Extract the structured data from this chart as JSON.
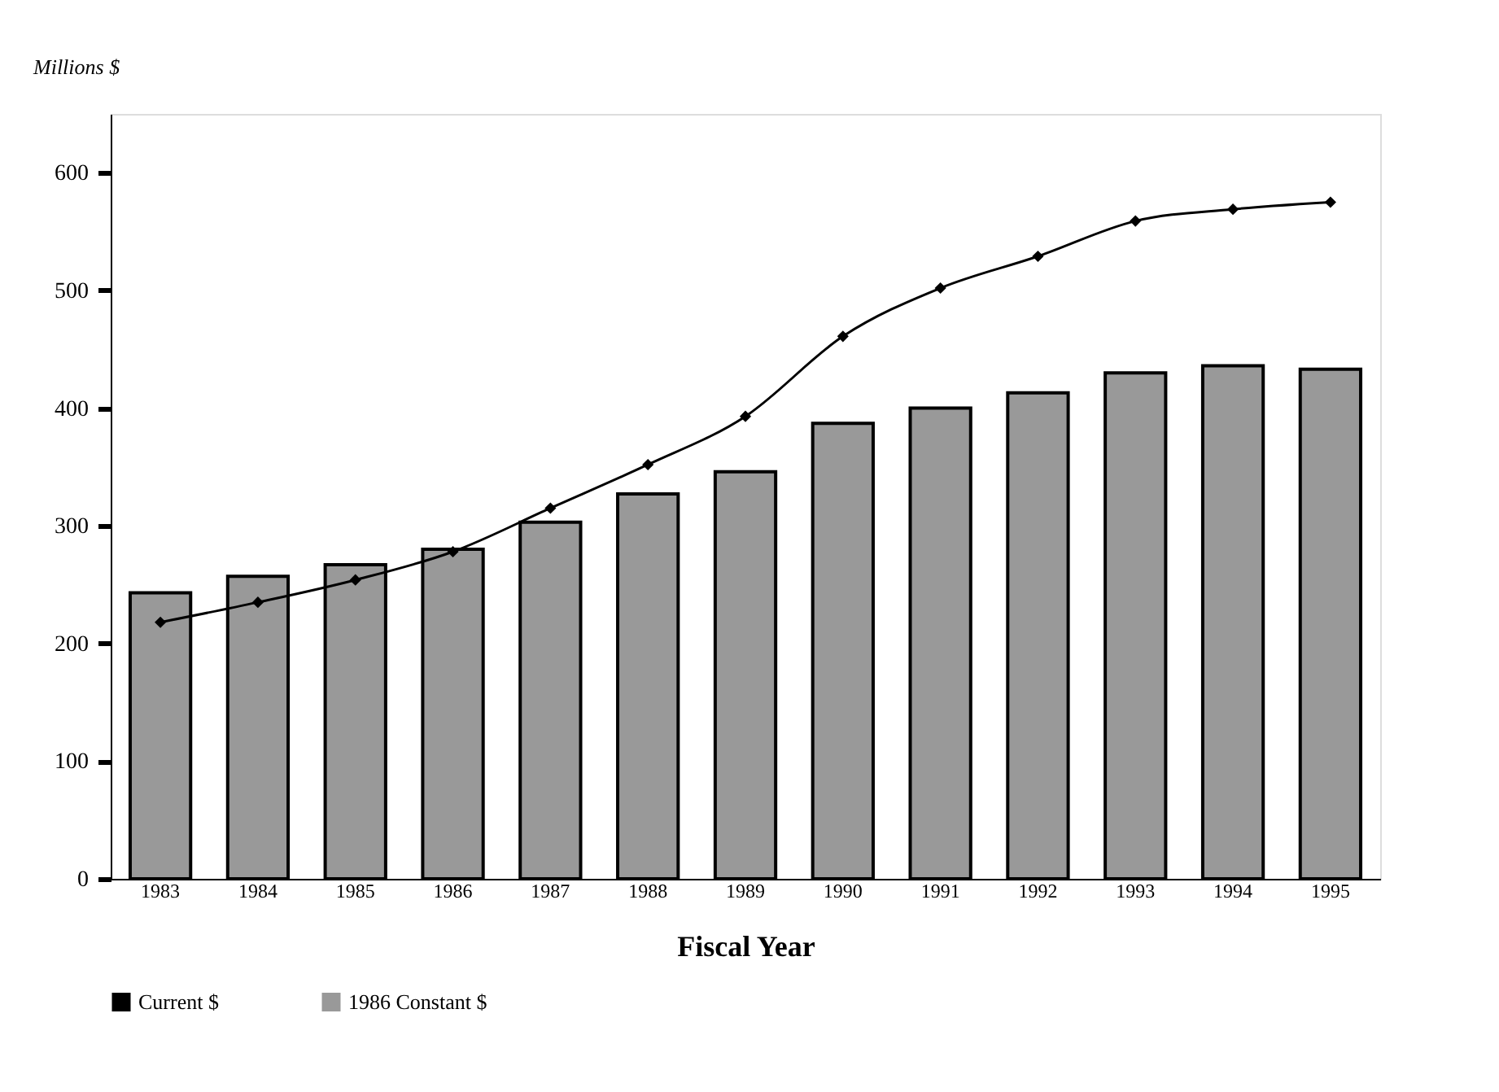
{
  "chart_data": {
    "type": "bar",
    "xlabel": "Fiscal Year",
    "ylabel": "Millions $",
    "categories": [
      "1983",
      "1984",
      "1985",
      "1986",
      "1987",
      "1988",
      "1989",
      "1990",
      "1991",
      "1992",
      "1993",
      "1994",
      "1995"
    ],
    "series": [
      {
        "name": "Current $",
        "type": "line",
        "color": "#000000",
        "marker": "diamond",
        "line_style": "solid",
        "values": [
          218,
          235,
          254,
          278,
          315,
          352,
          393,
          461,
          502,
          529,
          559,
          569,
          575
        ]
      },
      {
        "name": "1986 Constant $",
        "color": "#999999",
        "values": [
          243,
          257,
          267,
          280,
          303,
          327,
          346,
          387,
          400,
          413,
          430,
          436,
          433
        ]
      }
    ],
    "ylim": [
      0,
      650
    ],
    "yticks": [
      0,
      100,
      200,
      300,
      400,
      500,
      600
    ],
    "legend": "bottom",
    "grid": false
  }
}
